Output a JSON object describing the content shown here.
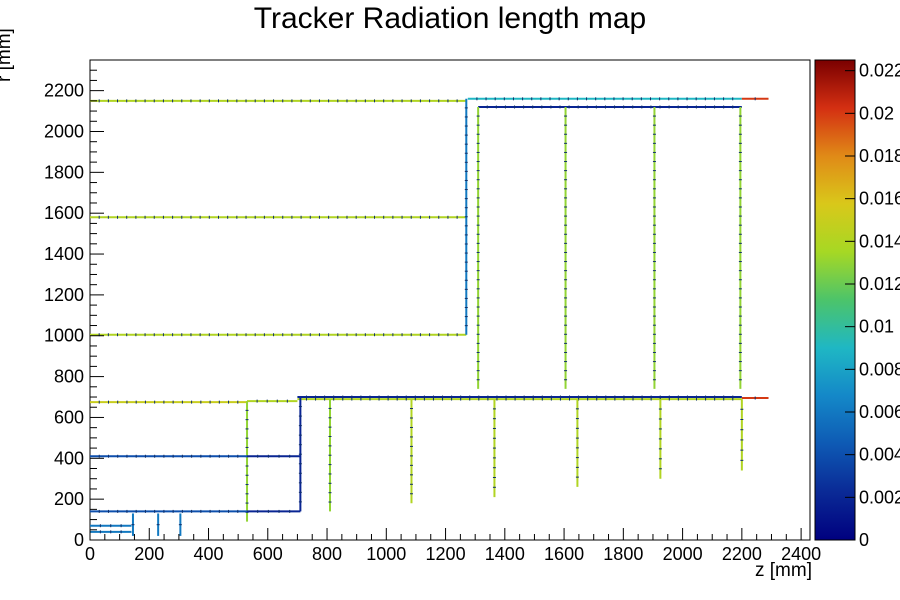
{
  "chart_data": {
    "type": "heatmap",
    "title": "Tracker Radiation length map",
    "xlabel": "z [mm]",
    "ylabel": "r [mm]",
    "xlim": [
      0,
      2430
    ],
    "ylim": [
      0,
      2350
    ],
    "x_ticks": [
      0,
      200,
      400,
      600,
      800,
      1000,
      1200,
      1400,
      1600,
      1800,
      2000,
      2200,
      2400
    ],
    "y_ticks": [
      0,
      200,
      400,
      600,
      800,
      1000,
      1200,
      1400,
      1600,
      1800,
      2000,
      2200
    ],
    "colorbar": {
      "range": [
        0,
        0.0225
      ],
      "ticks": [
        0,
        0.002,
        0.004,
        0.006,
        0.008,
        0.01,
        0.012,
        0.014,
        0.016,
        0.018,
        0.02,
        0.022
      ],
      "tick_labels": [
        "0",
        "0.002",
        "0.004",
        "0.006",
        "0.008",
        "0.01",
        "0.012",
        "0.014",
        "0.016",
        "0.018",
        "0.02",
        "0.022"
      ]
    },
    "grid": false,
    "segments": [
      {
        "x": [
          0,
          1270
        ],
        "y": [
          2150,
          2150
        ],
        "value": 0.014
      },
      {
        "x": [
          0,
          1270
        ],
        "y": [
          1580,
          1580
        ],
        "value": 0.014
      },
      {
        "x": [
          0,
          1270
        ],
        "y": [
          1005,
          1005
        ],
        "value": 0.014
      },
      {
        "x": [
          1270,
          1270
        ],
        "y": [
          1005,
          2160
        ],
        "value": 0.006
      },
      {
        "x": [
          1275,
          2200
        ],
        "y": [
          2160,
          2160
        ],
        "value": 0.009
      },
      {
        "x": [
          2200,
          2290
        ],
        "y": [
          2160,
          2160
        ],
        "value": 0.02
      },
      {
        "x": [
          1310,
          2200
        ],
        "y": [
          2120,
          2120
        ],
        "value": 0.002
      },
      {
        "x": [
          1310,
          1310
        ],
        "y": [
          740,
          2120
        ],
        "value": 0.013
      },
      {
        "x": [
          1605,
          1605
        ],
        "y": [
          740,
          2120
        ],
        "value": 0.013
      },
      {
        "x": [
          1905,
          1905
        ],
        "y": [
          740,
          2120
        ],
        "value": 0.013
      },
      {
        "x": [
          2195,
          2195
        ],
        "y": [
          740,
          2120
        ],
        "value": 0.013
      },
      {
        "x": [
          0,
          530
        ],
        "y": [
          675,
          675
        ],
        "value": 0.015
      },
      {
        "x": [
          530,
          700
        ],
        "y": [
          680,
          680
        ],
        "value": 0.014
      },
      {
        "x": [
          700,
          2200
        ],
        "y": [
          690,
          690
        ],
        "value": 0.014
      },
      {
        "x": [
          700,
          2200
        ],
        "y": [
          700,
          700
        ],
        "value": 0.002
      },
      {
        "x": [
          2200,
          2290
        ],
        "y": [
          695,
          695
        ],
        "value": 0.02
      },
      {
        "x": [
          530,
          530
        ],
        "y": [
          90,
          680
        ],
        "value": 0.013
      },
      {
        "x": [
          710,
          710
        ],
        "y": [
          140,
          700
        ],
        "value": 0.002
      },
      {
        "x": [
          0,
          530
        ],
        "y": [
          410,
          410
        ],
        "value": 0.004
      },
      {
        "x": [
          530,
          710
        ],
        "y": [
          410,
          410
        ],
        "value": 0.002
      },
      {
        "x": [
          0,
          530
        ],
        "y": [
          140,
          140
        ],
        "value": 0.004
      },
      {
        "x": [
          530,
          710
        ],
        "y": [
          140,
          140
        ],
        "value": 0.002
      },
      {
        "x": [
          810,
          810
        ],
        "y": [
          140,
          690
        ],
        "value": 0.013
      },
      {
        "x": [
          1085,
          1085
        ],
        "y": [
          180,
          690
        ],
        "value": 0.014
      },
      {
        "x": [
          1365,
          1365
        ],
        "y": [
          210,
          690
        ],
        "value": 0.014
      },
      {
        "x": [
          1645,
          1645
        ],
        "y": [
          260,
          690
        ],
        "value": 0.014
      },
      {
        "x": [
          1925,
          1925
        ],
        "y": [
          300,
          690
        ],
        "value": 0.014
      },
      {
        "x": [
          2200,
          2200
        ],
        "y": [
          340,
          690
        ],
        "value": 0.014
      },
      {
        "x": [
          0,
          140
        ],
        "y": [
          70,
          70
        ],
        "value": 0.006
      },
      {
        "x": [
          0,
          140
        ],
        "y": [
          40,
          40
        ],
        "value": 0.006
      },
      {
        "x": [
          145,
          145
        ],
        "y": [
          20,
          130
        ],
        "value": 0.006
      },
      {
        "x": [
          230,
          230
        ],
        "y": [
          20,
          130
        ],
        "value": 0.006
      },
      {
        "x": [
          305,
          305
        ],
        "y": [
          20,
          130
        ],
        "value": 0.006
      }
    ]
  },
  "colors": {
    "frame": "#000000",
    "palette": [
      "#00007f",
      "#0a2a96",
      "#0e5ab4",
      "#1488c8",
      "#1fb7c4",
      "#4cc46a",
      "#a6d824",
      "#d9c81a",
      "#e08a17",
      "#d42f12",
      "#7a0000"
    ]
  }
}
